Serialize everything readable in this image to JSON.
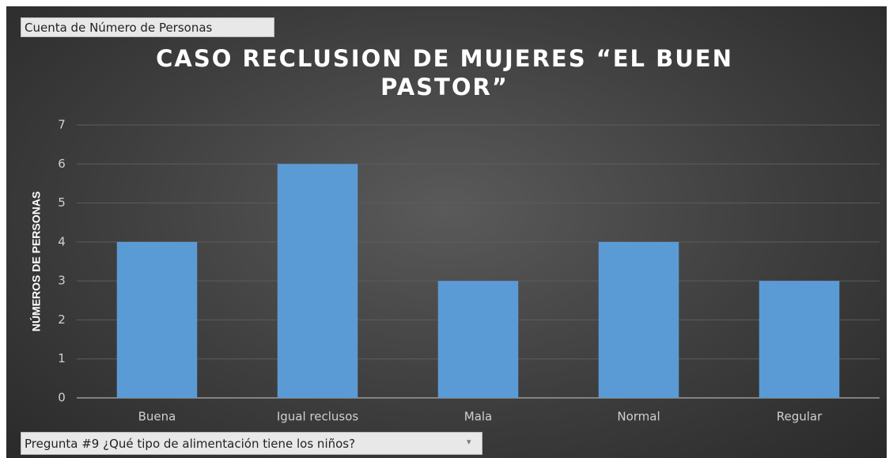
{
  "chart_data": {
    "type": "bar",
    "title": "CASO RECLUSION DE MUJERES “EL BUEN PASTOR”",
    "value_field": "Cuenta de Número de Personas",
    "axis_field": "Pregunta #9 ¿Qué tipo de alimentación tiene los niños?",
    "y_label": "NÚMEROS DE PERSONAS",
    "categories": [
      "Buena",
      "Igual reclusos",
      "Mala",
      "Normal",
      "Regular"
    ],
    "values": [
      4,
      6,
      3,
      4,
      3
    ],
    "color": "#5b9bd5",
    "ylim": [
      0,
      7
    ],
    "yticks": [
      0,
      1,
      2,
      3,
      4,
      5,
      6,
      7
    ],
    "grid": true
  }
}
